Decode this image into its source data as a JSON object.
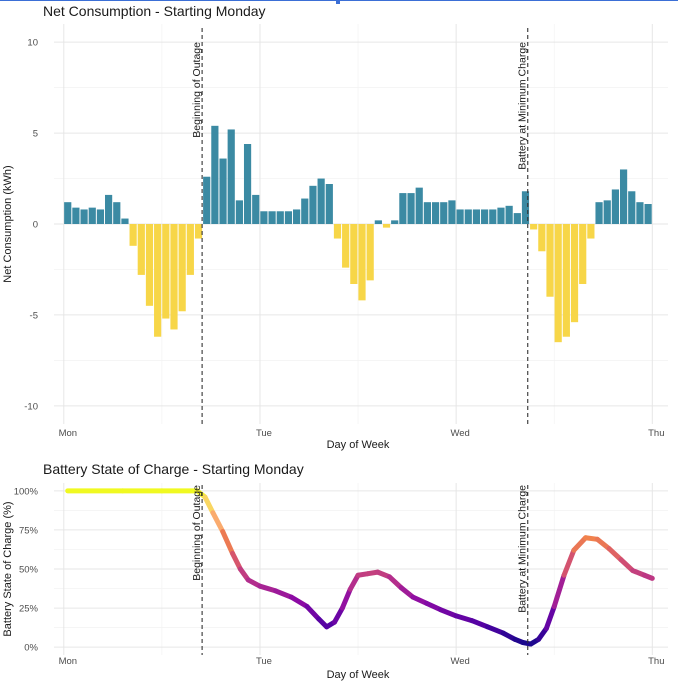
{
  "colors": {
    "positive_bar": "#3b8aa3",
    "negative_bar": "#f7d648",
    "gradient": [
      "#0d0887",
      "#5302a3",
      "#8b0aa5",
      "#b83289",
      "#db5c68",
      "#f48849",
      "#fec287",
      "#f0f921"
    ]
  },
  "chart_data": [
    {
      "type": "bar",
      "title": "Net Consumption - Starting Monday",
      "xlabel": "Day of Week",
      "ylabel": "Net Consumption (kWh)",
      "ylim": [
        -11,
        11
      ],
      "yticks": [
        -10,
        -5,
        0,
        5,
        10
      ],
      "ytick_labels": [
        "-10",
        "-5",
        "0",
        "5",
        "10"
      ],
      "xlim": [
        -0.05,
        3.08
      ],
      "xticks": [
        0,
        1,
        2,
        3
      ],
      "xtick_labels": [
        "Mon",
        "Tue",
        "Wed",
        "Thu"
      ],
      "bar_start": 0.02,
      "bar_step": 0.04167,
      "values": [
        1.2,
        0.9,
        0.8,
        0.9,
        0.8,
        1.6,
        1.2,
        0.3,
        -1.2,
        -2.8,
        -4.5,
        -6.2,
        -5.2,
        -5.8,
        -4.8,
        -2.8,
        -0.8,
        2.6,
        5.4,
        3.6,
        5.2,
        1.3,
        4.4,
        1.6,
        0.7,
        0.7,
        0.7,
        0.7,
        0.8,
        1.4,
        2.1,
        2.5,
        2.2,
        -0.8,
        -2.4,
        -3.3,
        -4.2,
        -3.1,
        0.2,
        -0.2,
        0.2,
        1.7,
        1.7,
        2.0,
        1.2,
        1.2,
        1.2,
        1.3,
        0.8,
        0.8,
        0.8,
        0.8,
        0.8,
        0.9,
        1.0,
        0.6,
        1.8,
        -0.3,
        -1.5,
        -4.0,
        -6.5,
        -6.2,
        -5.4,
        -3.3,
        -0.8,
        1.2,
        1.3,
        1.9,
        3.0,
        1.8,
        1.2,
        1.1
      ],
      "annotations": [
        {
          "label": "Beginning of Outage",
          "x": 0.705
        },
        {
          "label": "Battery at Minimum Charge",
          "x": 2.365
        }
      ]
    },
    {
      "type": "line",
      "title": "Battery State of Charge - Starting Monday",
      "xlabel": "Day of Week",
      "ylabel": "Battery State of Charge (%)",
      "ylim": [
        -0.05,
        1.05
      ],
      "yticks": [
        0,
        0.25,
        0.5,
        0.75,
        1.0
      ],
      "ytick_labels": [
        "0%",
        "25%",
        "50%",
        "75%",
        "100%"
      ],
      "xlim": [
        -0.05,
        3.08
      ],
      "xticks": [
        0,
        1,
        2,
        3
      ],
      "xtick_labels": [
        "Mon",
        "Tue",
        "Wed",
        "Thu"
      ],
      "series": [
        {
          "name": "Battery State of Charge",
          "x": [
            0.02,
            0.3,
            0.5,
            0.68,
            0.72,
            0.76,
            0.81,
            0.86,
            0.9,
            0.94,
            1.0,
            1.08,
            1.16,
            1.24,
            1.3,
            1.34,
            1.38,
            1.42,
            1.46,
            1.5,
            1.55,
            1.6,
            1.66,
            1.72,
            1.78,
            1.85,
            1.92,
            2.0,
            2.08,
            2.16,
            2.24,
            2.3,
            2.34,
            2.38,
            2.42,
            2.46,
            2.5,
            2.55,
            2.6,
            2.66,
            2.72,
            2.78,
            2.84,
            2.9,
            2.96,
            3.0
          ],
          "y": [
            1.0,
            1.0,
            1.0,
            1.0,
            0.96,
            0.86,
            0.74,
            0.6,
            0.5,
            0.43,
            0.39,
            0.36,
            0.32,
            0.26,
            0.18,
            0.13,
            0.16,
            0.25,
            0.37,
            0.46,
            0.47,
            0.48,
            0.45,
            0.38,
            0.32,
            0.28,
            0.24,
            0.2,
            0.17,
            0.13,
            0.09,
            0.05,
            0.03,
            0.02,
            0.05,
            0.12,
            0.26,
            0.46,
            0.62,
            0.7,
            0.69,
            0.63,
            0.56,
            0.49,
            0.46,
            0.44
          ]
        }
      ],
      "annotations": [
        {
          "label": "Beginning of Outage",
          "x": 0.705
        },
        {
          "label": "Battery at Minimum Charge",
          "x": 2.365
        }
      ]
    }
  ]
}
